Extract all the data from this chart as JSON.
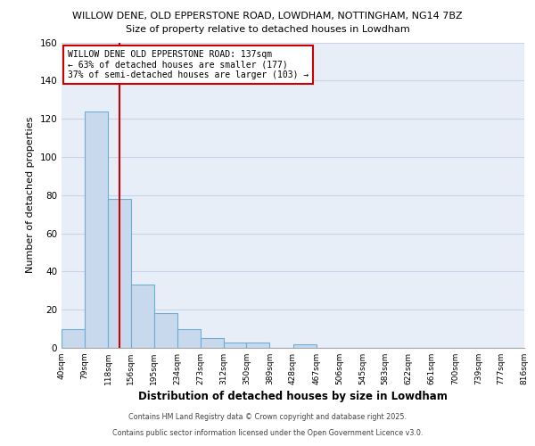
{
  "title_line1": "WILLOW DENE, OLD EPPERSTONE ROAD, LOWDHAM, NOTTINGHAM, NG14 7BZ",
  "title_line2": "Size of property relative to detached houses in Lowdham",
  "xlabel": "Distribution of detached houses by size in Lowdham",
  "ylabel": "Number of detached properties",
  "bin_labels": [
    "40sqm",
    "79sqm",
    "118sqm",
    "156sqm",
    "195sqm",
    "234sqm",
    "273sqm",
    "312sqm",
    "350sqm",
    "389sqm",
    "428sqm",
    "467sqm",
    "506sqm",
    "545sqm",
    "583sqm",
    "622sqm",
    "661sqm",
    "700sqm",
    "739sqm",
    "777sqm",
    "816sqm"
  ],
  "bin_edges": [
    40,
    79,
    118,
    156,
    195,
    234,
    273,
    312,
    350,
    389,
    428,
    467,
    506,
    545,
    583,
    622,
    661,
    700,
    739,
    777,
    816
  ],
  "bar_heights": [
    10,
    124,
    78,
    33,
    18,
    10,
    5,
    3,
    3,
    0,
    2,
    0,
    0,
    0,
    0,
    0,
    0,
    0,
    0,
    0
  ],
  "bar_color": "#c8d9ed",
  "bar_edge_color": "#6baed6",
  "grid_color": "#c8d4e8",
  "background_color": "#e8eef8",
  "red_line_x": 137,
  "annotation_text": "WILLOW DENE OLD EPPERSTONE ROAD: 137sqm\n← 63% of detached houses are smaller (177)\n37% of semi-detached houses are larger (103) →",
  "annotation_box_color": "#ffffff",
  "annotation_border_color": "#cc0000",
  "ylim": [
    0,
    160
  ],
  "footer_line1": "Contains HM Land Registry data © Crown copyright and database right 2025.",
  "footer_line2": "Contains public sector information licensed under the Open Government Licence v3.0."
}
